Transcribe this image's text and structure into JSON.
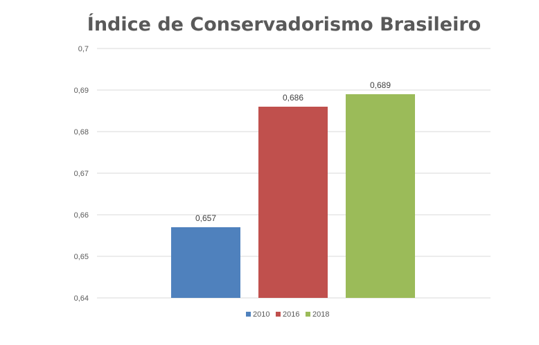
{
  "chart_data": {
    "type": "bar",
    "title": "Índice de Conservadorismo Brasileiro",
    "xlabel": "",
    "ylabel": "",
    "ylim": [
      0.64,
      0.7
    ],
    "yticks": [
      "0,64",
      "0,65",
      "0,66",
      "0,67",
      "0,68",
      "0,69",
      "0,7"
    ],
    "grid": true,
    "legend_position": "bottom",
    "series": [
      {
        "name": "2010",
        "value": 0.657,
        "label": "0,657",
        "color": "#4F81BD"
      },
      {
        "name": "2016",
        "value": 0.686,
        "label": "0,686",
        "color": "#C0504D"
      },
      {
        "name": "2018",
        "value": 0.689,
        "label": "0,689",
        "color": "#9BBB59"
      }
    ]
  }
}
